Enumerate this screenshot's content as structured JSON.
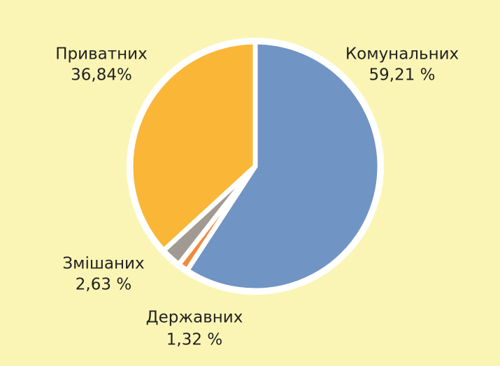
{
  "chart_data": {
    "type": "pie",
    "categories": [
      "Комунальних",
      "Державних",
      "Змішаних",
      "Приватних"
    ],
    "values": [
      59.21,
      1.32,
      2.63,
      36.84
    ],
    "value_labels": [
      "59,21 %",
      "1,32 %",
      "2,63 %",
      "36,84%"
    ],
    "colors": [
      "#7094c4",
      "#f08a3c",
      "#a09a92",
      "#f9b637"
    ]
  }
}
